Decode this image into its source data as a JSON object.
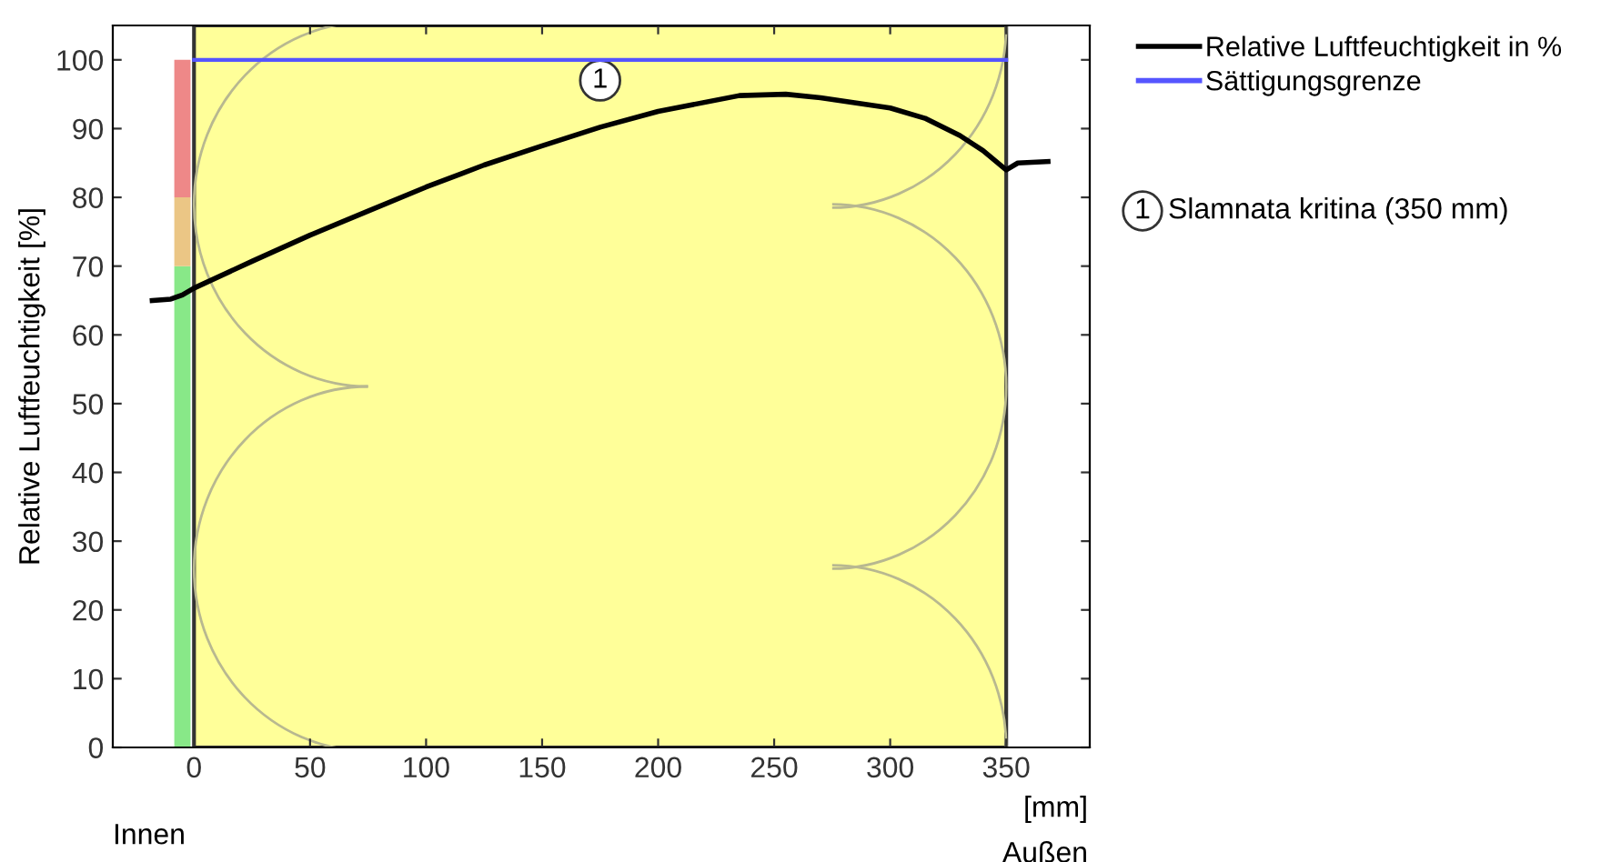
{
  "chart_data": {
    "type": "line",
    "ylabel": "Relative Luftfeuchtigkeit [%]",
    "xlabel": "[mm]",
    "xlim": [
      -35,
      386
    ],
    "ylim": [
      0,
      105
    ],
    "xticks": [
      0,
      50,
      100,
      150,
      200,
      250,
      300,
      350
    ],
    "yticks": [
      0,
      10,
      20,
      30,
      40,
      50,
      60,
      70,
      80,
      90,
      100
    ],
    "grid": false,
    "legend": "top right",
    "stacked": true,
    "series": [
      {
        "name": "Relative Luftfeuchtigkeit in %",
        "color": "#000000",
        "x": [
          -18,
          -10,
          -5,
          0,
          25,
          50,
          75,
          100,
          125,
          150,
          175,
          200,
          235,
          255,
          270,
          300,
          315,
          330,
          340,
          350,
          355,
          368
        ],
        "values": [
          65,
          65.2,
          65.8,
          66.8,
          70.7,
          74.5,
          78,
          81.5,
          84.7,
          87.5,
          90.2,
          92.5,
          94.8,
          95,
          94.5,
          93,
          91.5,
          89,
          86.8,
          84,
          85,
          85.2
        ]
      },
      {
        "name": "Sättigungsgrenze",
        "color": "#5555ff",
        "x": [
          0,
          350
        ],
        "values": [
          100,
          100
        ]
      },
      {
        "type": "bar",
        "color": "#88e888",
        "x": [
          -5
        ],
        "values": [
          70
        ]
      },
      {
        "type": "bar",
        "color": "#ebc685",
        "x": [
          -5
        ],
        "values": [
          10
        ]
      },
      {
        "type": "bar",
        "color": "#ee8888",
        "x": [
          -5
        ],
        "values": [
          20
        ]
      }
    ],
    "bands": [
      {
        "axis": "x",
        "from": 0,
        "to": 350,
        "label": "1",
        "color": "#ffff99"
      }
    ],
    "annotations": [
      "Slamnata kritina (350 mm)",
      "Innen",
      "Außen"
    ]
  }
}
